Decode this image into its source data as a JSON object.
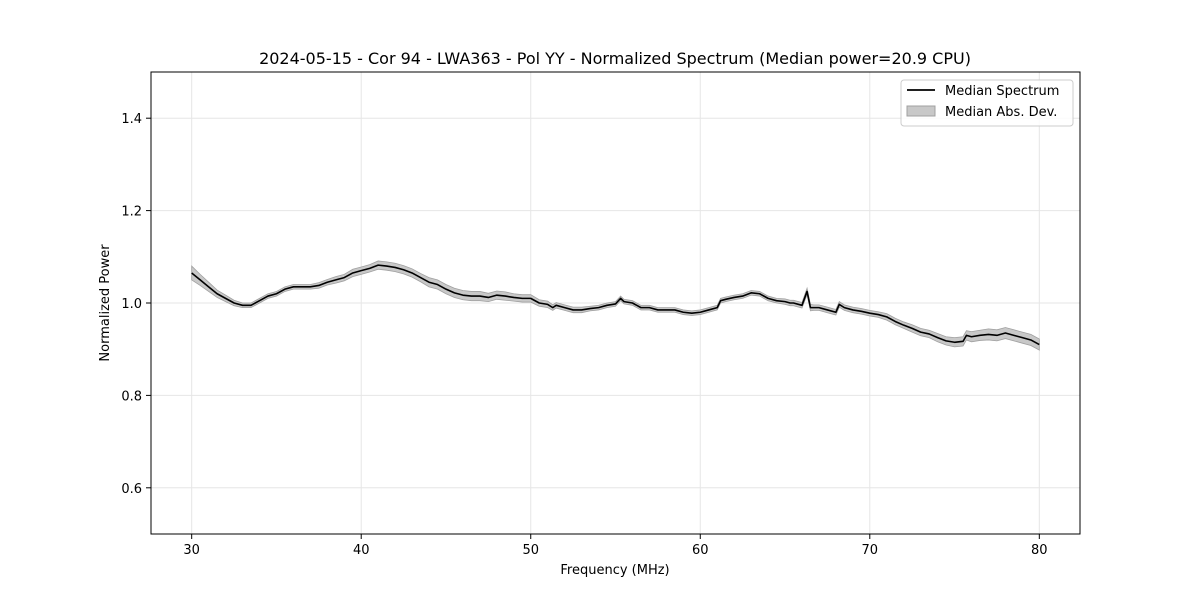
{
  "chart_data": {
    "type": "line",
    "title": "2024-05-15 - Cor 94 - LWA363 - Pol YY - Normalized Spectrum (Median power=20.9 CPU)",
    "xlabel": "Frequency (MHz)",
    "ylabel": "Normalized Power",
    "xlim": [
      27.6,
      82.4
    ],
    "ylim": [
      0.5,
      1.5
    ],
    "xticks": [
      30,
      40,
      50,
      60,
      70,
      80
    ],
    "yticks": [
      0.6,
      0.8,
      1.0,
      1.2,
      1.4
    ],
    "xtick_labels": [
      "30",
      "40",
      "50",
      "60",
      "70",
      "80"
    ],
    "ytick_labels": [
      "0.6",
      "0.8",
      "1.0",
      "1.2",
      "1.4"
    ],
    "grid": true,
    "legend_position": "top-right",
    "legend": [
      "Median Spectrum",
      "Median Abs. Dev."
    ],
    "series": [
      {
        "name": "Median Spectrum",
        "x": [
          30.0,
          30.5,
          31.0,
          31.5,
          32.0,
          32.5,
          33.0,
          33.5,
          34.0,
          34.5,
          35.0,
          35.5,
          36.0,
          36.5,
          37.0,
          37.5,
          38.0,
          38.5,
          39.0,
          39.5,
          40.0,
          40.5,
          41.0,
          41.5,
          42.0,
          42.5,
          43.0,
          43.5,
          44.0,
          44.5,
          45.0,
          45.5,
          46.0,
          46.5,
          47.0,
          47.5,
          48.0,
          48.5,
          49.0,
          49.5,
          50.0,
          50.5,
          51.0,
          51.3,
          51.5,
          52.0,
          52.5,
          53.0,
          53.5,
          54.0,
          54.5,
          55.0,
          55.3,
          55.5,
          56.0,
          56.5,
          57.0,
          57.5,
          58.0,
          58.5,
          59.0,
          59.5,
          60.0,
          60.5,
          61.0,
          61.2,
          61.5,
          62.0,
          62.5,
          63.0,
          63.5,
          64.0,
          64.5,
          65.0,
          65.3,
          65.5,
          66.0,
          66.3,
          66.5,
          66.7,
          67.0,
          67.5,
          68.0,
          68.2,
          68.5,
          69.0,
          69.5,
          70.0,
          70.5,
          71.0,
          71.5,
          72.0,
          72.5,
          73.0,
          73.5,
          74.0,
          74.5,
          75.0,
          75.5,
          75.7,
          76.0,
          76.5,
          77.0,
          77.5,
          78.0,
          78.5,
          79.0,
          79.5,
          80.0
        ],
        "values": [
          1.065,
          1.05,
          1.035,
          1.02,
          1.01,
          1.0,
          0.995,
          0.995,
          1.005,
          1.015,
          1.02,
          1.03,
          1.035,
          1.035,
          1.035,
          1.038,
          1.045,
          1.05,
          1.055,
          1.065,
          1.07,
          1.075,
          1.082,
          1.08,
          1.077,
          1.072,
          1.065,
          1.055,
          1.045,
          1.04,
          1.03,
          1.022,
          1.017,
          1.015,
          1.015,
          1.012,
          1.017,
          1.015,
          1.012,
          1.01,
          1.01,
          1.0,
          0.997,
          0.99,
          0.995,
          0.99,
          0.985,
          0.985,
          0.988,
          0.99,
          0.995,
          0.998,
          1.01,
          1.003,
          1.0,
          0.99,
          0.99,
          0.985,
          0.985,
          0.985,
          0.98,
          0.978,
          0.98,
          0.985,
          0.99,
          1.005,
          1.008,
          1.012,
          1.015,
          1.022,
          1.02,
          1.01,
          1.005,
          1.003,
          1.0,
          1.0,
          0.995,
          1.025,
          0.99,
          0.99,
          0.99,
          0.985,
          0.98,
          0.997,
          0.99,
          0.985,
          0.982,
          0.978,
          0.975,
          0.97,
          0.96,
          0.952,
          0.945,
          0.937,
          0.933,
          0.925,
          0.918,
          0.915,
          0.917,
          0.93,
          0.927,
          0.93,
          0.932,
          0.93,
          0.935,
          0.93,
          0.925,
          0.92,
          0.91
        ]
      },
      {
        "name": "Median Abs. Dev.",
        "x": [
          30.0,
          30.5,
          31.0,
          31.5,
          32.0,
          32.5,
          33.0,
          33.5,
          34.0,
          34.5,
          35.0,
          35.5,
          36.0,
          36.5,
          37.0,
          37.5,
          38.0,
          38.5,
          39.0,
          39.5,
          40.0,
          40.5,
          41.0,
          41.5,
          42.0,
          42.5,
          43.0,
          43.5,
          44.0,
          44.5,
          45.0,
          45.5,
          46.0,
          46.5,
          47.0,
          47.5,
          48.0,
          48.5,
          49.0,
          49.5,
          50.0,
          50.5,
          51.0,
          51.3,
          51.5,
          52.0,
          52.5,
          53.0,
          53.5,
          54.0,
          54.5,
          55.0,
          55.3,
          55.5,
          56.0,
          56.5,
          57.0,
          57.5,
          58.0,
          58.5,
          59.0,
          59.5,
          60.0,
          60.5,
          61.0,
          61.2,
          61.5,
          62.0,
          62.5,
          63.0,
          63.5,
          64.0,
          64.5,
          65.0,
          65.3,
          65.5,
          66.0,
          66.3,
          66.5,
          66.7,
          67.0,
          67.5,
          68.0,
          68.2,
          68.5,
          69.0,
          69.5,
          70.0,
          70.5,
          71.0,
          71.5,
          72.0,
          72.5,
          73.0,
          73.5,
          74.0,
          74.5,
          75.0,
          75.5,
          75.7,
          76.0,
          76.5,
          77.0,
          77.5,
          78.0,
          78.5,
          79.0,
          79.5,
          80.0
        ],
        "spread": [
          0.015,
          0.012,
          0.01,
          0.008,
          0.007,
          0.006,
          0.005,
          0.005,
          0.005,
          0.005,
          0.005,
          0.005,
          0.005,
          0.005,
          0.005,
          0.006,
          0.006,
          0.007,
          0.007,
          0.008,
          0.008,
          0.008,
          0.009,
          0.009,
          0.009,
          0.009,
          0.009,
          0.009,
          0.01,
          0.01,
          0.01,
          0.01,
          0.01,
          0.01,
          0.01,
          0.009,
          0.009,
          0.009,
          0.008,
          0.008,
          0.008,
          0.007,
          0.007,
          0.006,
          0.006,
          0.006,
          0.006,
          0.006,
          0.005,
          0.005,
          0.005,
          0.005,
          0.005,
          0.005,
          0.005,
          0.005,
          0.005,
          0.005,
          0.005,
          0.005,
          0.005,
          0.005,
          0.005,
          0.005,
          0.005,
          0.005,
          0.005,
          0.005,
          0.005,
          0.005,
          0.005,
          0.005,
          0.005,
          0.006,
          0.006,
          0.006,
          0.006,
          0.007,
          0.007,
          0.006,
          0.006,
          0.006,
          0.006,
          0.006,
          0.006,
          0.006,
          0.006,
          0.006,
          0.006,
          0.007,
          0.007,
          0.007,
          0.008,
          0.008,
          0.008,
          0.009,
          0.009,
          0.01,
          0.01,
          0.01,
          0.011,
          0.011,
          0.012,
          0.012,
          0.012,
          0.012,
          0.012,
          0.012,
          0.012
        ]
      }
    ],
    "colors": {
      "line": "#000000",
      "band": "#c8c8c8",
      "band_edge": "#a0a0a0",
      "grid": "#e6e6e6",
      "axes": "#000000"
    }
  }
}
